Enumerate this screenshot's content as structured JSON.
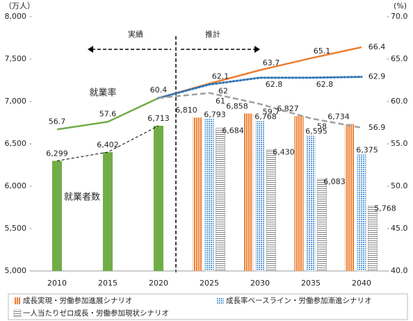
{
  "chart_data": {
    "type": "bar",
    "y_label": "（万人）",
    "y2_label": "(%)",
    "categories": [
      "2010",
      "2015",
      "2020",
      "2025",
      "2030",
      "2035",
      "2040"
    ],
    "ylim": [
      5000,
      8000
    ],
    "yticks": [
      {
        "value": 5000,
        "label": "5,000"
      },
      {
        "value": 5500,
        "label": "5,500"
      },
      {
        "value": 6000,
        "label": "6,000"
      },
      {
        "value": 6500,
        "label": "6,500"
      },
      {
        "value": 7000,
        "label": "7,000"
      },
      {
        "value": 7500,
        "label": "7,500"
      },
      {
        "value": 8000,
        "label": "8,000"
      }
    ],
    "y2lim": [
      40,
      70
    ],
    "y2ticks": [
      {
        "value": 40,
        "label": "40.0"
      },
      {
        "value": 45,
        "label": "45.0"
      },
      {
        "value": 50,
        "label": "50.0"
      },
      {
        "value": 55,
        "label": "55.0"
      },
      {
        "value": 60,
        "label": "60.0"
      },
      {
        "value": 65,
        "label": "65.0"
      },
      {
        "value": 70,
        "label": "70.0"
      }
    ],
    "annotations": [
      "実績",
      "推計"
    ],
    "series": [
      {
        "name": "就業者数",
        "type": "bar",
        "color": "#70ad47",
        "pattern": "solid",
        "in_legend": false,
        "connector": "dashed",
        "values": [
          6299,
          6402,
          6713,
          null,
          null,
          null,
          null
        ],
        "value_labels": [
          "6,299",
          "6,402",
          "6,713",
          null,
          null,
          null,
          null
        ]
      },
      {
        "name": "成長実現・労働参加進展シナリオ",
        "type": "bar",
        "color": "#ed7d31",
        "pattern": "vertical",
        "in_legend": true,
        "values": [
          null,
          null,
          null,
          6810,
          6858,
          6827,
          6734
        ],
        "value_labels": [
          null,
          null,
          null,
          "6,810",
          "6,858",
          "6,827",
          "6,734"
        ]
      },
      {
        "name": "成長率ベースライン・労働参加漸進シナリオ",
        "type": "bar",
        "color": "#5b9bd5",
        "pattern": "grid",
        "in_legend": true,
        "values": [
          null,
          null,
          null,
          6793,
          6768,
          6595,
          6375
        ],
        "value_labels": [
          null,
          null,
          null,
          "6,793",
          "6,768",
          "6,595",
          "6,375"
        ]
      },
      {
        "name": "一人当たりゼロ成長・労働参加現状シナリオ",
        "type": "bar",
        "color": "#808080",
        "pattern": "horizontal",
        "in_legend": true,
        "values": [
          null,
          null,
          null,
          6684,
          6430,
          6083,
          5768
        ],
        "value_labels": [
          null,
          null,
          null,
          "6,684",
          "6,430",
          "6,083",
          "5,768"
        ]
      },
      {
        "name": "就業率",
        "type": "line",
        "axis": "y2",
        "color": "#70ad47",
        "style": "solid",
        "in_legend": false,
        "values": [
          56.7,
          57.6,
          60.4,
          null,
          null,
          null,
          null
        ]
      },
      {
        "type": "line",
        "axis": "y2",
        "color": "#ed7d31",
        "style": "solid",
        "values": [
          null,
          null,
          60.4,
          62.1,
          63.7,
          65.1,
          66.4
        ]
      },
      {
        "type": "line",
        "axis": "y2",
        "color": "#2e75b6",
        "style": "dotted",
        "values": [
          null,
          null,
          60.4,
          62.0,
          62.8,
          62.8,
          62.9
        ]
      },
      {
        "type": "line",
        "axis": "y2",
        "color": "#a0a0a0",
        "style": "dashed",
        "values": [
          null,
          null,
          60.4,
          61.0,
          59.7,
          58.0,
          56.9
        ]
      }
    ]
  }
}
